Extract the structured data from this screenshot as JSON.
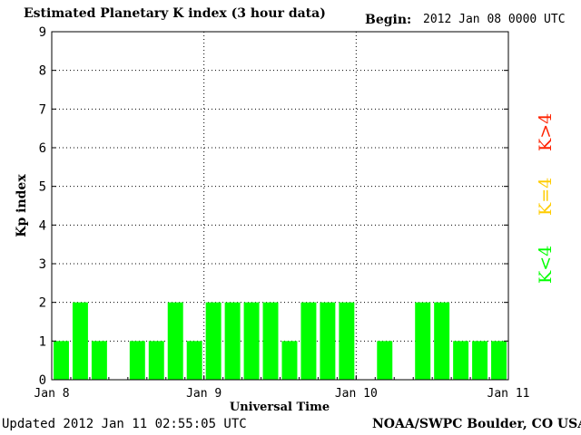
{
  "header": {
    "title": "Estimated Planetary K index (3 hour data)",
    "begin_label": "Begin:",
    "begin_value": "2012 Jan 08 0000 UTC"
  },
  "footer": {
    "updated": "Updated 2012 Jan 11 02:55:05 UTC",
    "source": "NOAA/SWPC Boulder, CO USA"
  },
  "legend": [
    {
      "label": "K<4",
      "color": "#00ff00"
    },
    {
      "label": "K=4",
      "color": "#ffcc00"
    },
    {
      "label": "K>4",
      "color": "#ff2200"
    }
  ],
  "chart_data": {
    "type": "bar",
    "xlabel": "Universal Time",
    "ylabel": "Kp index",
    "ylim": [
      0,
      9
    ],
    "yticks": [
      0,
      1,
      2,
      3,
      4,
      5,
      6,
      7,
      8,
      9
    ],
    "x_tick_labels": [
      "Jan 8",
      "Jan 9",
      "Jan 10",
      "Jan 11"
    ],
    "bar_color": "#00ff00",
    "grid": "dotted",
    "categories": [
      "Jan 08 00",
      "Jan 08 03",
      "Jan 08 06",
      "Jan 08 09",
      "Jan 08 12",
      "Jan 08 15",
      "Jan 08 18",
      "Jan 08 21",
      "Jan 09 00",
      "Jan 09 03",
      "Jan 09 06",
      "Jan 09 09",
      "Jan 09 12",
      "Jan 09 15",
      "Jan 09 18",
      "Jan 09 21",
      "Jan 10 00",
      "Jan 10 03",
      "Jan 10 06",
      "Jan 10 09",
      "Jan 10 12",
      "Jan 10 15",
      "Jan 10 18",
      "Jan 10 21"
    ],
    "values": [
      1,
      2,
      1,
      0,
      1,
      1,
      2,
      1,
      2,
      2,
      2,
      2,
      1,
      2,
      2,
      2,
      0,
      1,
      0,
      2,
      2,
      1,
      1,
      1
    ]
  }
}
